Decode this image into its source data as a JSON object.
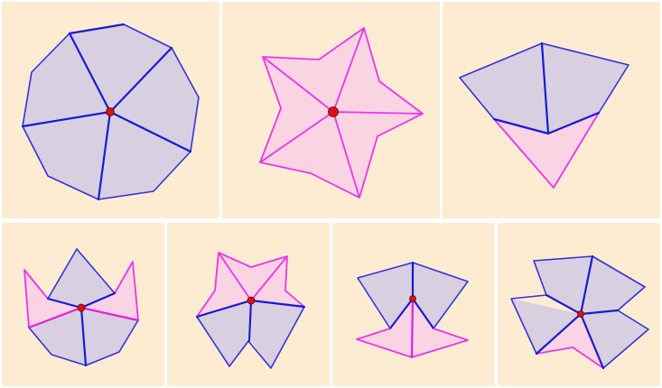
{
  "colors": {
    "panel_bg": "#fdecd2",
    "blue_edge": "#3333dd",
    "blue_edge_strong": "#1a1ad6",
    "blue_fill": "#d8d0e0",
    "pink_edge": "#ee33ee",
    "pink_edge_strong": "#e01ee0",
    "pink_fill": "#fad4e2",
    "center_point": "#dd1111"
  },
  "panels": [
    {
      "name": "panel-decagon",
      "shape": "decagon-fan"
    },
    {
      "name": "panel-star",
      "shape": "five-point-star"
    },
    {
      "name": "panel-kite",
      "shape": "fan-with-folded-triangle"
    },
    {
      "name": "panel-crown",
      "shape": "crown-fan"
    },
    {
      "name": "panel-bowtie-star",
      "shape": "star-fold"
    },
    {
      "name": "panel-hourglass",
      "shape": "bowtie-fold"
    },
    {
      "name": "panel-pinwheel",
      "shape": "pinwheel-fold"
    }
  ]
}
